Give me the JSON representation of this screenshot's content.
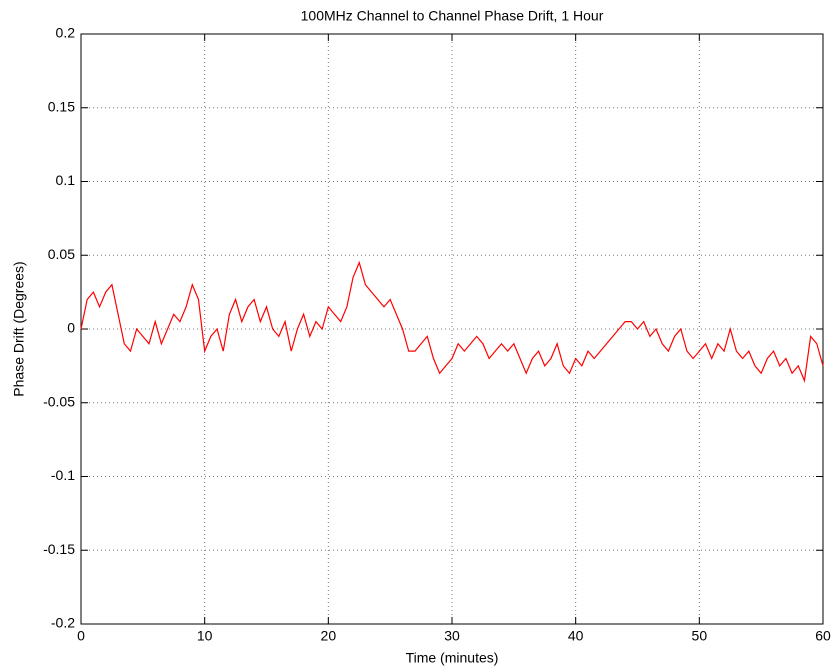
{
  "chart_data": {
    "type": "line",
    "title": "100MHz Channel to Channel Phase Drift, 1 Hour",
    "xlabel": "Time (minutes)",
    "ylabel": "Phase Drift (Degrees)",
    "x": [
      0,
      0.5,
      1,
      1.5,
      2,
      2.5,
      3,
      3.5,
      4,
      4.5,
      5,
      5.5,
      6,
      6.5,
      7,
      7.5,
      8,
      8.5,
      9,
      9.5,
      10,
      10.5,
      11,
      11.5,
      12,
      12.5,
      13,
      13.5,
      14,
      14.5,
      15,
      15.5,
      16,
      16.5,
      17,
      17.5,
      18,
      18.5,
      19,
      19.5,
      20,
      20.5,
      21,
      21.5,
      22,
      22.5,
      23,
      23.5,
      24,
      24.5,
      25,
      25.5,
      26,
      26.5,
      27,
      27.5,
      28,
      28.5,
      29,
      29.5,
      30,
      30.5,
      31,
      31.5,
      32,
      32.5,
      33,
      33.5,
      34,
      34.5,
      35,
      35.5,
      36,
      36.5,
      37,
      37.5,
      38,
      38.5,
      39,
      39.5,
      40,
      40.5,
      41,
      41.5,
      42,
      42.5,
      43,
      43.5,
      44,
      44.5,
      45,
      45.5,
      46,
      46.5,
      47,
      47.5,
      48,
      48.5,
      49,
      49.5,
      50,
      50.5,
      51,
      51.5,
      52,
      52.5,
      53,
      53.5,
      54,
      54.5,
      55,
      55.5,
      56,
      56.5,
      57,
      57.5,
      58,
      58.5,
      59,
      59.5,
      60
    ],
    "series": [
      {
        "color": "#ff0000",
        "values": [
          0,
          0.02,
          0.025,
          0.015,
          0.025,
          0.03,
          0.01,
          -0.01,
          -0.015,
          0,
          -0.005,
          -0.01,
          0.005,
          -0.01,
          0,
          0.01,
          0.005,
          0.015,
          0.03,
          0.02,
          -0.015,
          -0.005,
          0,
          -0.015,
          0.01,
          0.02,
          0.005,
          0.015,
          0.02,
          0.005,
          0.015,
          0,
          -0.005,
          0.005,
          -0.015,
          0,
          0.01,
          -0.005,
          0.005,
          0,
          0.015,
          0.01,
          0.005,
          0.015,
          0.035,
          0.045,
          0.03,
          0.025,
          0.02,
          0.015,
          0.02,
          0.01,
          0,
          -0.015,
          -0.015,
          -0.01,
          -0.005,
          -0.02,
          -0.03,
          -0.025,
          -0.02,
          -0.01,
          -0.015,
          -0.01,
          -0.005,
          -0.01,
          -0.02,
          -0.015,
          -0.01,
          -0.015,
          -0.01,
          -0.02,
          -0.03,
          -0.02,
          -0.015,
          -0.025,
          -0.02,
          -0.01,
          -0.025,
          -0.03,
          -0.02,
          -0.025,
          -0.015,
          -0.02,
          -0.015,
          -0.01,
          -0.005,
          0,
          0.005,
          0.005,
          0,
          0.005,
          -0.005,
          0,
          -0.01,
          -0.015,
          -0.005,
          0,
          -0.015,
          -0.02,
          -0.015,
          -0.01,
          -0.02,
          -0.01,
          -0.015,
          0,
          -0.015,
          -0.02,
          -0.015,
          -0.025,
          -0.03,
          -0.02,
          -0.015,
          -0.025,
          -0.02,
          -0.03,
          -0.025,
          -0.035,
          -0.005,
          -0.01,
          -0.025
        ]
      }
    ],
    "xlim": [
      0,
      60
    ],
    "xticks": [
      0,
      10,
      20,
      30,
      40,
      50,
      60
    ],
    "ylim": [
      -0.2,
      0.2
    ],
    "yticks": [
      -0.2,
      -0.15,
      -0.1,
      -0.05,
      0,
      0.05,
      0.1,
      0.15,
      0.2
    ],
    "grid": true
  }
}
